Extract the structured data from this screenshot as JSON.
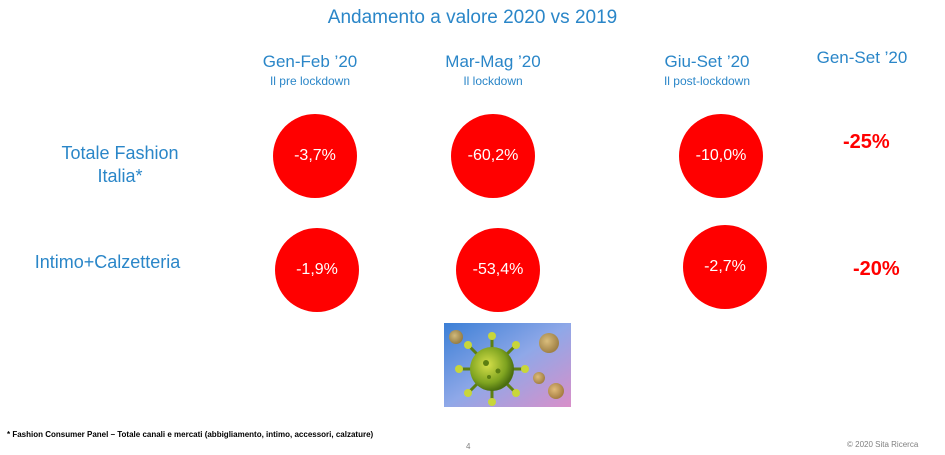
{
  "title": "Andamento a valore 2020 vs 2019",
  "periods": [
    {
      "label": "Gen-Feb ’20",
      "sub": "Il pre lockdown"
    },
    {
      "label": "Mar-Mag ’20",
      "sub": "Il lockdown"
    },
    {
      "label": "Giu-Set ’20",
      "sub": "Il post-lockdown"
    },
    {
      "label": "Gen-Set ’20",
      "sub": ""
    }
  ],
  "rows": [
    {
      "label_line1": "Totale Fashion",
      "label_line2": "Italia*",
      "values": [
        "-3,7%",
        "-60,2%",
        "-10,0%"
      ],
      "total": "-25%"
    },
    {
      "label_line1": "Intimo+Calzetteria",
      "values": [
        "-1,9%",
        "-53,4%",
        "-2,7%"
      ],
      "total": "-20%"
    }
  ],
  "colors": {
    "accent_blue": "#2a86c8",
    "negative_red": "#ff0000"
  },
  "image": {
    "icon": "coronavirus-illustration"
  },
  "footnote": "* Fashion Consumer Panel – Totale canali e mercati (abbigliamento, intimo, accessori, calzature)",
  "page_number": "4",
  "copyright": "© 2020  Sita Ricerca"
}
